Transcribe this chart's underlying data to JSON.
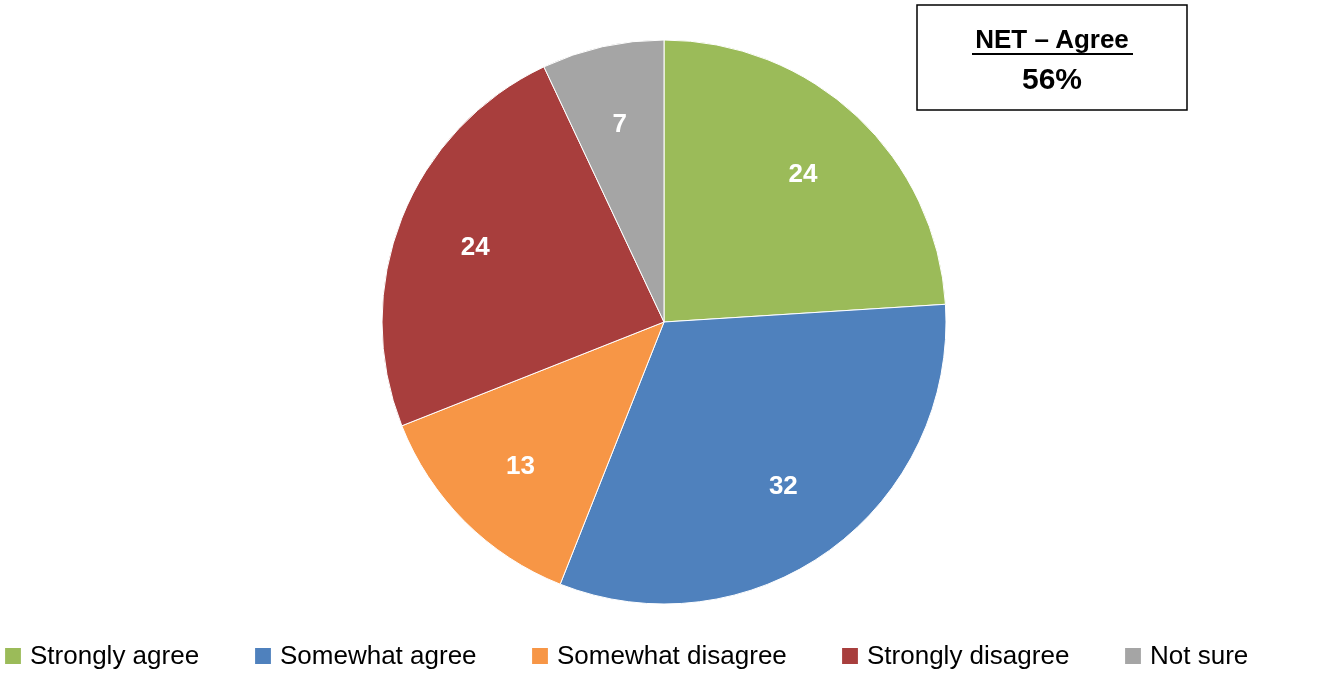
{
  "chart_data": {
    "type": "pie",
    "categories": [
      "Strongly agree",
      "Somewhat agree",
      "Somewhat disagree",
      "Strongly disagree",
      "Not sure"
    ],
    "values": [
      24,
      32,
      13,
      24,
      7
    ],
    "colors": [
      "#9bbb59",
      "#4f81bd",
      "#f79646",
      "#a83e3d",
      "#a5a5a5"
    ],
    "data_labels": true,
    "legend": "bottom",
    "annotations": [
      "NET – Agree",
      "56%"
    ]
  }
}
